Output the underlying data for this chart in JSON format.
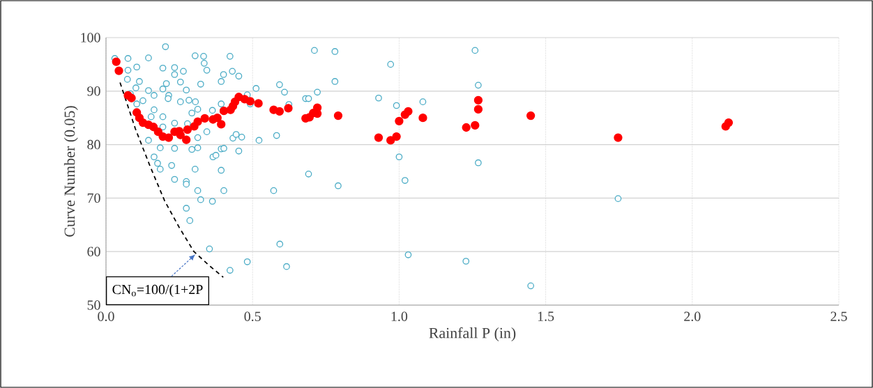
{
  "chart_data": {
    "type": "scatter",
    "xlabel": "Rainfall P (in)",
    "ylabel": "Curve Number (0.05)",
    "xlim": [
      0,
      2.5
    ],
    "xticks": [
      {
        "value": 0,
        "label": "0.0"
      },
      0.5,
      {
        "value": 1,
        "label": "1.0"
      },
      1.5,
      {
        "value": 2,
        "label": "2.0"
      },
      2.5
    ],
    "ylim": [
      50,
      100
    ],
    "yticks": [
      50,
      60,
      70,
      80,
      90,
      100
    ],
    "grid": true,
    "marker": "circle",
    "annotations": [
      {
        "text": "CN$_{o}$=100/(1+2P",
        "x": 0.305,
        "y": 59.5
      }
    ],
    "series": [
      {
        "color": "#4bacc6",
        "x": [
          0.03,
          0.075,
          0.145,
          0.075,
          0.105,
          0.073,
          0.114,
          0.102,
          0.083,
          0.145,
          0.164,
          0.126,
          0.105,
          0.194,
          0.234,
          0.234,
          0.264,
          0.304,
          0.333,
          0.335,
          0.344,
          0.423,
          0.401,
          0.431,
          0.453,
          0.393,
          0.323,
          0.254,
          0.206,
          0.194,
          0.274,
          0.214,
          0.212,
          0.254,
          0.283,
          0.305,
          0.313,
          0.293,
          0.363,
          0.393,
          0.164,
          0.154,
          0.194,
          0.234,
          0.278,
          0.194,
          0.145,
          0.185,
          0.234,
          0.293,
          0.313,
          0.313,
          0.344,
          0.365,
          0.375,
          0.393,
          0.402,
          0.453,
          0.433,
          0.444,
          0.463,
          0.164,
          0.176,
          0.185,
          0.224,
          0.304,
          0.393,
          0.234,
          0.274,
          0.274,
          0.313,
          0.323,
          0.363,
          0.402,
          0.274,
          0.286,
          0.353,
          0.423,
          0.482,
          0.572,
          0.582,
          0.522,
          0.512,
          0.482,
          0.492,
          0.592,
          0.609,
          0.593,
          0.616,
          0.203,
          0.711,
          0.781,
          0.971,
          0.781,
          0.721,
          0.681,
          0.691,
          0.624,
          0.723,
          0.93,
          0.991,
          1.081,
          1.0,
          1.02,
          0.691,
          0.792,
          1.031,
          1.228,
          1.259,
          1.27,
          1.27,
          1.747,
          1.449
        ],
        "values": [
          96.1,
          96.1,
          96.2,
          93.9,
          94.5,
          92.2,
          91.8,
          90.6,
          89.5,
          90.1,
          89.2,
          88.2,
          87.6,
          94.3,
          94.4,
          93.1,
          93.7,
          96.6,
          96.5,
          95.2,
          93.9,
          96.5,
          93.1,
          93.7,
          92.8,
          91.8,
          91.3,
          91.7,
          91.4,
          90.4,
          90.2,
          89.2,
          88.6,
          88.0,
          88.3,
          88.0,
          86.6,
          85.9,
          86.4,
          87.6,
          86.5,
          85.2,
          85.2,
          84.0,
          83.9,
          83.3,
          80.8,
          79.4,
          79.3,
          79.1,
          79.4,
          81.3,
          82.4,
          77.7,
          78.0,
          79.2,
          79.3,
          78.8,
          81.2,
          81.9,
          81.4,
          77.7,
          76.5,
          75.4,
          76.1,
          75.4,
          75.2,
          73.5,
          73.1,
          72.6,
          71.4,
          69.7,
          69.4,
          71.4,
          68.1,
          65.8,
          60.5,
          56.5,
          58.1,
          71.4,
          81.7,
          80.8,
          90.5,
          89.3,
          87.6,
          91.2,
          89.8,
          61.4,
          57.2,
          98.3,
          97.6,
          97.4,
          95.0,
          91.8,
          89.8,
          88.6,
          88.6,
          87.5,
          null,
          88.7,
          87.3,
          88.0,
          77.7,
          73.3,
          74.5,
          72.3,
          59.4,
          58.2,
          97.6,
          91.1,
          76.6,
          69.9,
          53.6
        ]
      },
      {
        "color": "#ff0000",
        "x": [
          0.035,
          0.044,
          0.075,
          0.087,
          0.105,
          0.114,
          0.126,
          0.145,
          0.162,
          0.178,
          0.19,
          0.194,
          0.214,
          0.234,
          0.25,
          0.254,
          0.274,
          0.278,
          0.301,
          0.313,
          0.337,
          0.365,
          0.38,
          0.393,
          0.402,
          0.425,
          0.433,
          0.44,
          0.453,
          0.473,
          0.492,
          0.52,
          0.572,
          0.592,
          0.622,
          0.681,
          0.694,
          0.707,
          0.721,
          0.721,
          0.783,
          0.792,
          0.93,
          0.971,
          0.991,
          1.0,
          1.02,
          1.031,
          1.081,
          1.229,
          1.259,
          1.27,
          1.27,
          1.449,
          1.747,
          2.114,
          2.124
        ],
        "values": [
          95.5,
          93.8,
          89.2,
          88.7,
          86.0,
          85.0,
          84.1,
          83.7,
          83.3,
          82.4,
          null,
          81.5,
          81.3,
          82.4,
          82.5,
          81.8,
          80.9,
          82.8,
          83.4,
          84.3,
          84.9,
          84.7,
          85.0,
          83.8,
          86.3,
          86.5,
          87.2,
          88.0,
          88.9,
          88.5,
          88.1,
          87.7,
          86.5,
          86.2,
          86.8,
          84.9,
          85.1,
          85.9,
          86.9,
          85.8,
          null,
          85.4,
          81.3,
          80.8,
          81.5,
          84.4,
          85.6,
          86.2,
          85.0,
          83.2,
          83.6,
          88.3,
          86.6,
          85.4,
          81.3,
          83.4,
          84.1
        ]
      },
      {
        "type": "line",
        "color": "#000000",
        "line_style": "dashed",
        "marker": "none",
        "x": [
          0.048,
          0.1,
          0.15,
          0.2,
          0.25,
          0.3,
          0.35,
          0.4
        ],
        "values": [
          91.6,
          83,
          76,
          69.5,
          64.5,
          60,
          57.5,
          55.2
        ]
      }
    ]
  }
}
